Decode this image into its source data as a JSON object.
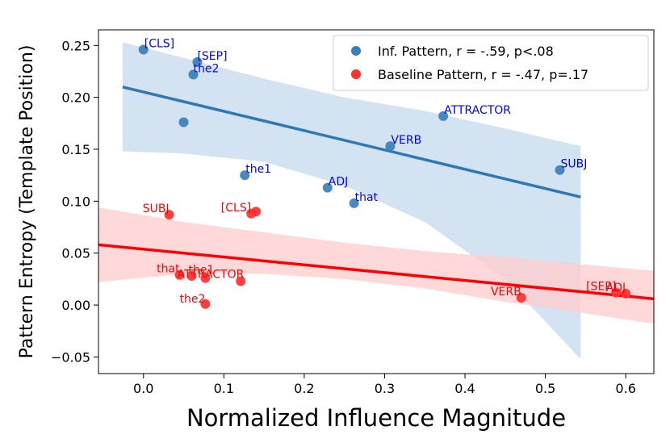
{
  "chart_data": {
    "type": "scatter",
    "xlabel": "Normalized Influence Magnitude",
    "ylabel": "Pattern Entropy (Template Position)",
    "xlim": [
      -0.056,
      0.635
    ],
    "ylim": [
      -0.066,
      0.265
    ],
    "xticks": [
      0.0,
      0.1,
      0.2,
      0.3,
      0.4,
      0.5,
      0.6
    ],
    "yticks": [
      -0.05,
      0.0,
      0.05,
      0.1,
      0.15,
      0.2,
      0.25
    ],
    "xtick_labels": [
      "0.0",
      "0.1",
      "0.2",
      "0.3",
      "0.4",
      "0.5",
      "0.6"
    ],
    "ytick_labels": [
      "−0.05",
      "0.00",
      "0.05",
      "0.10",
      "0.15",
      "0.20",
      "0.25"
    ],
    "grid": false,
    "legend_position": "top-right",
    "series": [
      {
        "name": "Inf. Pattern, r = -.59, p<.08",
        "point_color": "#3a7fb8",
        "label_color": "#0000ff",
        "line_color": "#2e78b5",
        "band_color": "#c5daee",
        "points": [
          {
            "x": 0.0,
            "y": 0.246,
            "label": "[CLS]"
          },
          {
            "x": 0.067,
            "y": 0.234,
            "label": "[SEP]"
          },
          {
            "x": 0.062,
            "y": 0.222,
            "label": "the2"
          },
          {
            "x": 0.05,
            "y": 0.176,
            "label": ""
          },
          {
            "x": 0.373,
            "y": 0.182,
            "label": "ATTRACTOR"
          },
          {
            "x": 0.307,
            "y": 0.153,
            "label": "VERB"
          },
          {
            "x": 0.518,
            "y": 0.13,
            "label": "SUBJ"
          },
          {
            "x": 0.126,
            "y": 0.125,
            "label": "the1"
          },
          {
            "x": 0.229,
            "y": 0.113,
            "label": "ADJ"
          },
          {
            "x": 0.262,
            "y": 0.098,
            "label": "that"
          }
        ],
        "fit": {
          "x": [
            -0.026,
            0.544
          ],
          "y": [
            0.21,
            0.104
          ]
        },
        "band": {
          "x": [
            -0.026,
            0.05,
            0.15,
            0.25,
            0.35,
            0.45,
            0.544
          ],
          "upper": [
            0.253,
            0.238,
            0.218,
            0.2,
            0.187,
            0.17,
            0.153
          ],
          "lower": [
            0.148,
            0.146,
            0.138,
            0.115,
            0.08,
            0.025,
            -0.052
          ]
        }
      },
      {
        "name": "Baseline Pattern, r = -.47, p=.17",
        "point_color": "#ff3030",
        "label_color": "#ff0000",
        "line_color": "#ff0000",
        "band_color": "#ffcccc",
        "points": [
          {
            "x": 0.032,
            "y": 0.087,
            "label": "SUBJ"
          },
          {
            "x": 0.134,
            "y": 0.088,
            "label": "[CLS]"
          },
          {
            "x": 0.14,
            "y": 0.09,
            "label": ""
          },
          {
            "x": 0.045,
            "y": 0.029,
            "label": "that"
          },
          {
            "x": 0.06,
            "y": 0.028,
            "label": "the1"
          },
          {
            "x": 0.077,
            "y": 0.026,
            "label": "ATTRACTOR"
          },
          {
            "x": 0.121,
            "y": 0.023,
            "label": ""
          },
          {
            "x": 0.077,
            "y": 0.001,
            "label": "the2"
          },
          {
            "x": 0.47,
            "y": 0.007,
            "label": "VERB"
          },
          {
            "x": 0.588,
            "y": 0.012,
            "label": "[SEP]"
          },
          {
            "x": 0.6,
            "y": 0.011,
            "label": "ADJ"
          }
        ],
        "fit": {
          "x": [
            -0.056,
            0.635
          ],
          "y": [
            0.058,
            0.006
          ]
        },
        "band": {
          "x": [
            -0.056,
            0.05,
            0.15,
            0.25,
            0.35,
            0.45,
            0.55,
            0.635
          ],
          "upper": [
            0.094,
            0.08,
            0.07,
            0.06,
            0.052,
            0.046,
            0.039,
            0.033
          ],
          "lower": [
            0.022,
            0.03,
            0.03,
            0.025,
            0.016,
            0.003,
            -0.008,
            -0.018
          ]
        }
      }
    ]
  }
}
